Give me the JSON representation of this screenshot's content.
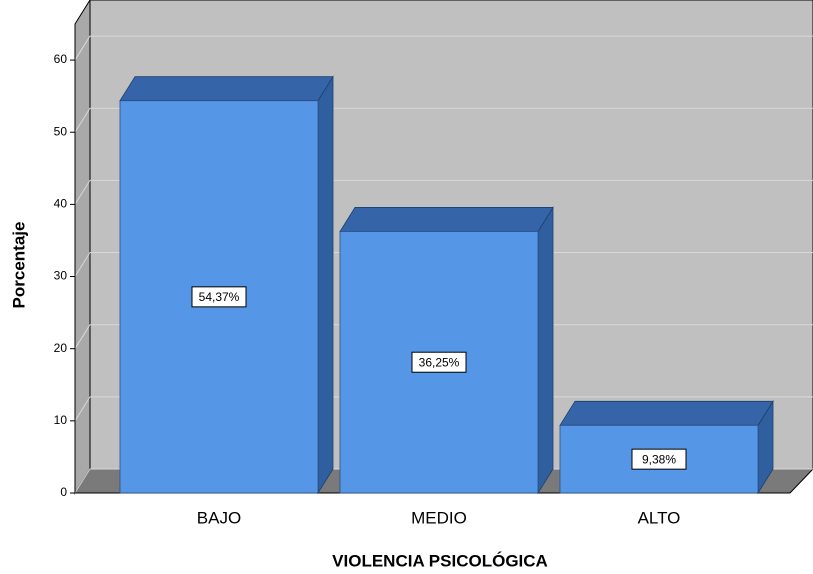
{
  "chart_data": {
    "type": "bar3d",
    "x_label": "VIOLENCIA PSICOLÓGICA",
    "y_label": "Porcentaje",
    "categories": [
      "BAJO",
      "MEDIO",
      "ALTO"
    ],
    "values": [
      54.37,
      36.25,
      9.38
    ],
    "value_labels": [
      "54,37%",
      "36,25%",
      "9,38%"
    ],
    "color": "#5596e6",
    "ylim": [
      0,
      65
    ],
    "yticks": [
      0,
      10,
      20,
      30,
      40,
      50,
      60
    ],
    "grid": true
  }
}
